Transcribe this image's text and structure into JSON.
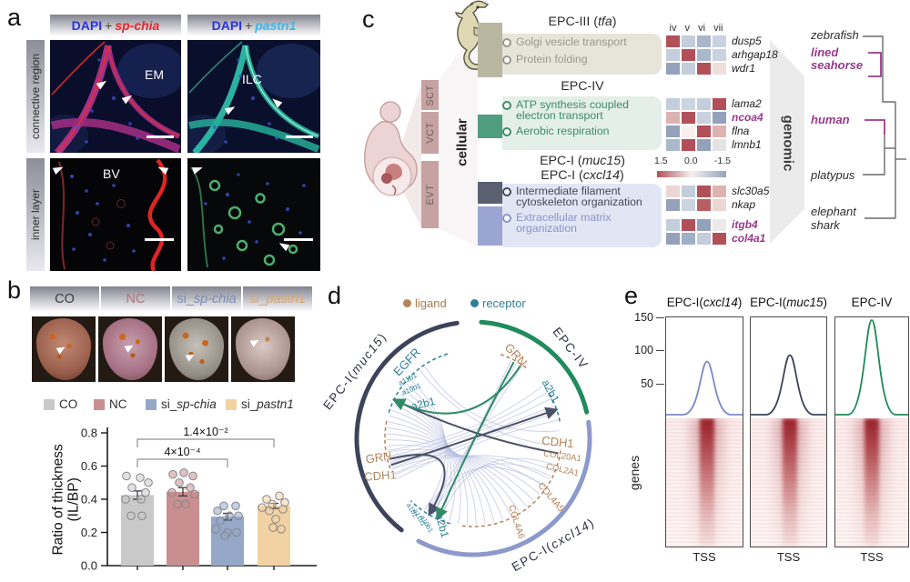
{
  "panel_a": {
    "label": "a",
    "columns": [
      {
        "stain": "DAPI",
        "plus": "+",
        "gene": "sp-chia",
        "stain_color": "#2a35d8",
        "gene_color": "#e8262d"
      },
      {
        "stain": "DAPI",
        "plus": "+",
        "gene": "pastn1",
        "stain_color": "#2a35d8",
        "gene_color": "#3fb9e8"
      }
    ],
    "rows": [
      "connective region",
      "inner layer"
    ],
    "annotations": {
      "top_left": "EM",
      "top_right": "ILC",
      "bottom_left": "BV",
      "bottom_right": ""
    }
  },
  "panel_b": {
    "label": "b",
    "groups": [
      {
        "prefix": "CO",
        "gene": "",
        "label_color": "#3a3a42"
      },
      {
        "prefix": "NC",
        "gene": "",
        "label_color": "#b4767a"
      },
      {
        "prefix": "si_",
        "gene": "sp-chia",
        "label_color": "#7d8cb4"
      },
      {
        "prefix": "si_",
        "gene": "pastn1",
        "label_color": "#d9a86c"
      }
    ]
  },
  "panel_c": {
    "label": "c",
    "tissue_segments": [
      "SCT",
      "VCT",
      "EVT"
    ],
    "left_axis": "cellular",
    "right_axis": "genomic",
    "modules": [
      {
        "title_prefix": "EPC-III (",
        "title_gene": "tfa",
        "title_suffix": ")",
        "accent": "#b9b7a0",
        "text_color": "#98988c",
        "terms": [
          [
            "Golgi vesicle transport"
          ],
          [
            "Protein folding"
          ]
        ]
      },
      {
        "title_prefix": "EPC-IV",
        "title_gene": "",
        "title_suffix": "",
        "accent": "#4f9e80",
        "text_color": "#3f8a6d",
        "terms": [
          [
            "ATP synthesis coupled",
            "electron transport"
          ],
          [
            "Aerobic respiration"
          ]
        ]
      },
      {
        "title_prefix": "EPC-I (",
        "title_gene": "muc15",
        "title_suffix": ")",
        "accent": "#5b6070",
        "text_color": "#42475a",
        "terms": [
          [
            "Intermediate filament",
            "cytoskeleton organization"
          ]
        ]
      },
      {
        "title_prefix": "EPC-I (",
        "title_gene": "cxcl14",
        "title_suffix": ")",
        "accent": "#9aa5d2",
        "text_color": "#8a93c8",
        "terms": [
          [
            "Extracellular matrix",
            "organization"
          ]
        ]
      }
    ],
    "tree": {
      "highlight_color": "#993a8c",
      "species": [
        {
          "line1": "zebrafish",
          "line2": "",
          "highlight": false
        },
        {
          "line1": "lined",
          "line2": "seahorse",
          "highlight": true
        },
        {
          "line1": "human",
          "line2": "",
          "highlight": true
        },
        {
          "line1": "platypus",
          "line2": "",
          "highlight": false
        },
        {
          "line1": "elephant",
          "line2": "shark",
          "highlight": false
        }
      ]
    }
  },
  "panel_d": {
    "label": "d",
    "legend": [
      {
        "label": "ligand",
        "color": "#b5835a"
      },
      {
        "label": "receptor",
        "color": "#2e7f96"
      }
    ],
    "arcs": [
      {
        "prefix": "EPC-I(",
        "gene": "muc15",
        "suffix": ")",
        "color": "#3d4459"
      },
      {
        "prefix": "EPC-IV",
        "gene": "",
        "suffix": "",
        "color": "#218a5e"
      },
      {
        "prefix": "EPC-I(",
        "gene": "cxcl14",
        "suffix": ")",
        "color": "#8d99cc"
      }
    ],
    "nodes": [
      {
        "label": "EGFR",
        "type": "receptor"
      },
      {
        "label": "a11b1",
        "type": "receptor"
      },
      {
        "label": "a10b1",
        "type": "receptor"
      },
      {
        "label": "a2b1",
        "type": "receptor"
      },
      {
        "label": "GRN",
        "type": "ligand"
      },
      {
        "label": "a2b1",
        "type": "receptor"
      },
      {
        "label": "CDH1",
        "type": "ligand"
      },
      {
        "label": "COL20A1",
        "type": "ligand"
      },
      {
        "label": "COL2A1",
        "type": "ligand"
      },
      {
        "label": "COL4A5",
        "type": "ligand"
      },
      {
        "label": "COL4A6",
        "type": "ligand"
      },
      {
        "label": "GRN",
        "type": "ligand"
      },
      {
        "label": "CDH1",
        "type": "ligand"
      },
      {
        "label": "a1b1",
        "type": "receptor"
      },
      {
        "label": "a11b1",
        "type": "receptor"
      },
      {
        "label": "a10b1",
        "type": "receptor"
      },
      {
        "label": "a2b1",
        "type": "receptor"
      }
    ]
  },
  "panel_e": {
    "label": "e",
    "row_label": "genes"
  },
  "chart_data": [
    {
      "id": "thickness_ratio",
      "type": "bar",
      "ylabel_lines": [
        "Ratio of thickness",
        "(IL/BP)"
      ],
      "categories": [
        "CO",
        "NC",
        "si_sp-chia",
        "si_pastn1"
      ],
      "values": [
        0.425,
        0.445,
        0.295,
        0.36
      ],
      "errors": [
        0.025,
        0.025,
        0.02,
        0.015
      ],
      "bar_colors": [
        "#c9c9c9",
        "#c98f90",
        "#96a8c8",
        "#f2d2a2"
      ],
      "yticks": [
        0,
        0.2,
        0.4,
        0.6,
        0.8
      ],
      "ylim": [
        0,
        0.8
      ],
      "points": [
        [
          [
            -12,
            0.54
          ],
          [
            3,
            0.53
          ],
          [
            12,
            0.5
          ],
          [
            -6,
            0.47
          ],
          [
            9,
            0.44
          ],
          [
            -13,
            0.4
          ],
          [
            4,
            0.4
          ],
          [
            -7,
            0.3
          ],
          [
            5,
            0.3
          ]
        ],
        [
          [
            -11,
            0.55
          ],
          [
            1,
            0.56
          ],
          [
            11,
            0.54
          ],
          [
            -4,
            0.5
          ],
          [
            8,
            0.47
          ],
          [
            -12,
            0.44
          ],
          [
            13,
            0.43
          ],
          [
            -6,
            0.37
          ],
          [
            3,
            0.37
          ]
        ],
        [
          [
            -4,
            0.36
          ],
          [
            9,
            0.36
          ],
          [
            -11,
            0.33
          ],
          [
            2,
            0.3
          ],
          [
            12,
            0.3
          ],
          [
            -8,
            0.27
          ],
          [
            -13,
            0.22
          ],
          [
            0,
            0.2
          ],
          [
            10,
            0.2
          ],
          [
            -3,
            0.18
          ]
        ],
        [
          [
            6,
            0.42
          ],
          [
            -8,
            0.4
          ],
          [
            12,
            0.38
          ],
          [
            -2,
            0.37
          ],
          [
            -13,
            0.35
          ],
          [
            10,
            0.34
          ],
          [
            -5,
            0.33
          ],
          [
            2,
            0.28
          ],
          [
            -1,
            0.23
          ],
          [
            8,
            0.22
          ]
        ]
      ],
      "significance": [
        {
          "from": 0,
          "to": 2,
          "label": "4×10⁻⁴"
        },
        {
          "from": 0,
          "to": 3,
          "label": "1.4×10⁻²"
        }
      ]
    },
    {
      "id": "tss_enrichment",
      "type": "area",
      "yticks": [
        50,
        100,
        150
      ],
      "xlabel": "TSS",
      "row_label": "genes",
      "panels": [
        {
          "title_prefix": "EPC-I(",
          "title_gene": "cxcl14",
          "title_suffix": ")",
          "peak_value": 85,
          "color": "#7d89c3"
        },
        {
          "title_prefix": "EPC-I(",
          "title_gene": "muc15",
          "title_suffix": ")",
          "peak_value": 95,
          "color": "#3d4459"
        },
        {
          "title_prefix": "EPC-IV",
          "title_gene": "",
          "title_suffix": "",
          "peak_value": 150,
          "color": "#1f8a5a"
        }
      ]
    },
    {
      "id": "module_gene_heatmap",
      "type": "heatmap",
      "col_labels": [
        "iv",
        "v",
        "vi",
        "vii"
      ],
      "scale": {
        "labels": [
          "1.5",
          "0.0",
          "-1.5"
        ],
        "left_color": "#b2505a",
        "mid_color": "#f6f1ef",
        "right_color": "#93a2ba"
      },
      "highlight_color": "#993a8c",
      "blocks": [
        {
          "rows": [
            {
              "gene": "dusp5",
              "highlight": false,
              "cells": [
                "#b2505a",
                "#c3cddb",
                "#a9b6c9",
                "#c9d2de"
              ]
            },
            {
              "gene": "arhgap18",
              "highlight": false,
              "cells": [
                "#c3cddb",
                "#b2505a",
                "#aab8cb",
                "#c9d2de"
              ]
            },
            {
              "gene": "wdr1",
              "highlight": false,
              "cells": [
                "#93a2ba",
                "#c3cddb",
                "#b2505a",
                "#eedfdd"
              ]
            }
          ]
        },
        {
          "rows": [
            {
              "gene": "lama2",
              "highlight": false,
              "cells": [
                "#c3cddb",
                "#ccd4df",
                "#c3cddb",
                "#b2505a"
              ]
            },
            {
              "gene": "ncoa4",
              "highlight": true,
              "cells": [
                "#ddb3b1",
                "#b2505a",
                "#c9d2de",
                "#93a2ba"
              ]
            },
            {
              "gene": "flna",
              "highlight": false,
              "cells": [
                "#93a2ba",
                "#f6f1ef",
                "#b2505a",
                "#ddb3b1"
              ]
            },
            {
              "gene": "lmnb1",
              "highlight": false,
              "cells": [
                "#aab8cb",
                "#b2505a",
                "#93a2ba",
                "#e3e3e3"
              ]
            }
          ]
        },
        {
          "rows": [
            {
              "gene": "slc30a5",
              "highlight": false,
              "cells": [
                "#ecd6d4",
                "#c3cddb",
                "#b2505a",
                "#ddb3b1"
              ]
            },
            {
              "gene": "nkap",
              "highlight": false,
              "cells": [
                "#93a2ba",
                "#ccd4df",
                "#b85f62",
                "#ecd6d4"
              ]
            }
          ]
        },
        {
          "rows": [
            {
              "gene": "itgb4",
              "highlight": true,
              "cells": [
                "#c3cddb",
                "#b2505a",
                "#93a2ba",
                "#eceae8"
              ]
            },
            {
              "gene": "col4a1",
              "highlight": true,
              "cells": [
                "#93a2ba",
                "#9fb0c6",
                "#c3cddb",
                "#b2505a"
              ]
            }
          ]
        }
      ]
    }
  ]
}
